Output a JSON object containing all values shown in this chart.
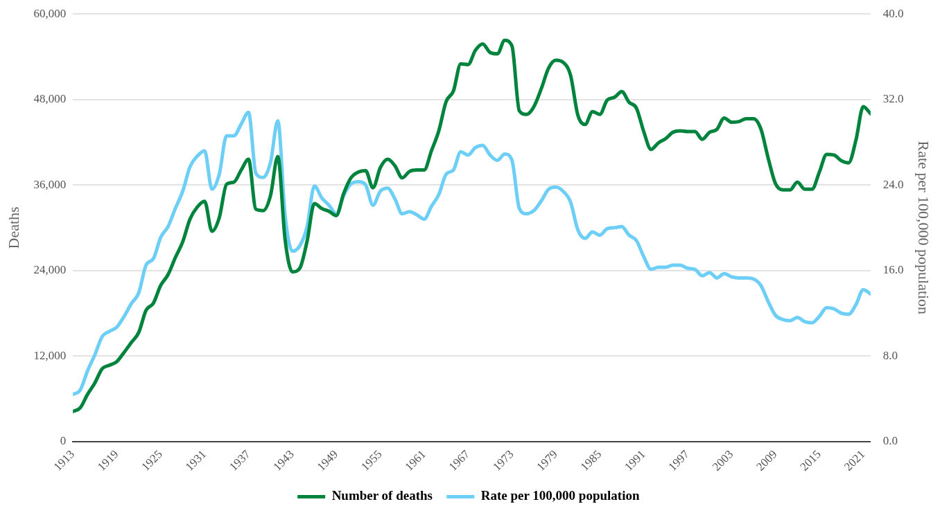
{
  "chart_data": {
    "type": "line",
    "ylabel": "Deaths",
    "y2label": "Rate per 100,000 population",
    "x": [
      1913,
      1914,
      1915,
      1916,
      1917,
      1918,
      1919,
      1920,
      1921,
      1922,
      1923,
      1924,
      1925,
      1926,
      1927,
      1928,
      1929,
      1930,
      1931,
      1932,
      1933,
      1934,
      1935,
      1936,
      1937,
      1938,
      1939,
      1940,
      1941,
      1942,
      1943,
      1944,
      1945,
      1946,
      1947,
      1948,
      1949,
      1950,
      1951,
      1952,
      1953,
      1954,
      1955,
      1956,
      1957,
      1958,
      1959,
      1960,
      1961,
      1962,
      1963,
      1964,
      1965,
      1966,
      1967,
      1968,
      1969,
      1970,
      1971,
      1972,
      1973,
      1974,
      1975,
      1976,
      1977,
      1978,
      1979,
      1980,
      1981,
      1982,
      1983,
      1984,
      1985,
      1986,
      1987,
      1988,
      1989,
      1990,
      1991,
      1992,
      1993,
      1994,
      1995,
      1996,
      1997,
      1998,
      1999,
      2000,
      2001,
      2002,
      2003,
      2004,
      2005,
      2006,
      2007,
      2008,
      2009,
      2010,
      2011,
      2012,
      2013,
      2014,
      2015,
      2016,
      2017,
      2018,
      2019,
      2020,
      2021,
      2022
    ],
    "series": [
      {
        "name": "Number of deaths",
        "color": "#00843d",
        "values": [
          4200,
          4700,
          6600,
          8200,
          10200,
          10700,
          11200,
          12500,
          13900,
          15300,
          18400,
          19400,
          21900,
          23400,
          25800,
          28000,
          31200,
          32900,
          33700,
          29500,
          31400,
          36100,
          36400,
          38100,
          39600,
          32600,
          32400,
          34500,
          40000,
          28300,
          23800,
          24300,
          28100,
          33400,
          32700,
          32300,
          31700,
          34800,
          37000,
          37800,
          38000,
          35600,
          38400,
          39600,
          38700,
          37000,
          37900,
          38100,
          38100,
          40800,
          43600,
          47700,
          49200,
          53000,
          52900,
          54900,
          55800,
          54600,
          54400,
          56300,
          55500,
          46400,
          45900,
          47000,
          49500,
          52400,
          53500,
          53200,
          51400,
          45800,
          44500,
          46300,
          45900,
          47900,
          48300,
          49100,
          47600,
          46800,
          43500,
          41000,
          41900,
          42500,
          43400,
          43600,
          43500,
          43500,
          42400,
          43400,
          43800,
          45400,
          44800,
          44900,
          45300,
          45300,
          43900,
          39800,
          36200,
          35300,
          35300,
          36400,
          35400,
          35400,
          37800,
          40300,
          40200,
          39400,
          39100,
          42300,
          47000,
          46000
        ]
      },
      {
        "name": "Rate per 100,000 population",
        "color": "#6ecff6",
        "axis": "y2",
        "values": [
          4.4,
          4.8,
          6.6,
          8.1,
          9.8,
          10.3,
          10.7,
          11.7,
          12.9,
          13.9,
          16.5,
          17.1,
          19.1,
          20.1,
          21.8,
          23.4,
          25.7,
          26.7,
          27.2,
          23.6,
          25.0,
          28.6,
          28.6,
          29.7,
          30.8,
          25.1,
          24.7,
          26.1,
          30.0,
          21.1,
          17.8,
          18.3,
          20.1,
          23.9,
          22.8,
          22.1,
          21.3,
          23.0,
          24.1,
          24.3,
          24.0,
          22.1,
          23.4,
          23.7,
          22.7,
          21.3,
          21.5,
          21.2,
          20.8,
          22.0,
          23.1,
          25.0,
          25.4,
          27.1,
          26.8,
          27.5,
          27.7,
          26.8,
          26.3,
          26.9,
          26.3,
          21.8,
          21.3,
          21.6,
          22.5,
          23.6,
          23.8,
          23.4,
          22.4,
          19.8,
          19.0,
          19.6,
          19.3,
          19.9,
          20.0,
          20.1,
          19.3,
          18.8,
          17.3,
          16.1,
          16.3,
          16.3,
          16.5,
          16.5,
          16.2,
          16.1,
          15.5,
          15.8,
          15.3,
          15.7,
          15.4,
          15.3,
          15.3,
          15.2,
          14.6,
          13.1,
          11.8,
          11.4,
          11.3,
          11.6,
          11.2,
          11.1,
          11.7,
          12.5,
          12.4,
          12.0,
          11.9,
          12.8,
          14.2,
          13.8
        ]
      }
    ],
    "xlim": [
      1913,
      2022
    ],
    "xticks": [
      1913,
      1919,
      1925,
      1931,
      1937,
      1943,
      1949,
      1955,
      1961,
      1967,
      1973,
      1979,
      1985,
      1991,
      1997,
      2003,
      2009,
      2015,
      2021
    ],
    "ylim": [
      0,
      60000
    ],
    "yticks": [
      {
        "value": 0,
        "label": "0"
      },
      {
        "value": 12000,
        "label": "12,000"
      },
      {
        "value": 24000,
        "label": "24,000"
      },
      {
        "value": 36000,
        "label": "36,000"
      },
      {
        "value": 48000,
        "label": "48,000"
      },
      {
        "value": 60000,
        "label": "60,000"
      }
    ],
    "y2lim": [
      0,
      40
    ],
    "y2ticks": [
      {
        "value": 0,
        "label": "0.0"
      },
      {
        "value": 8,
        "label": "8.0"
      },
      {
        "value": 16,
        "label": "16.0"
      },
      {
        "value": 24,
        "label": "24.0"
      },
      {
        "value": 32,
        "label": "32.0"
      },
      {
        "value": 40,
        "label": "40.0"
      }
    ],
    "grid": "y",
    "legend": "bottom",
    "marker": "none",
    "line_style": "solid"
  }
}
